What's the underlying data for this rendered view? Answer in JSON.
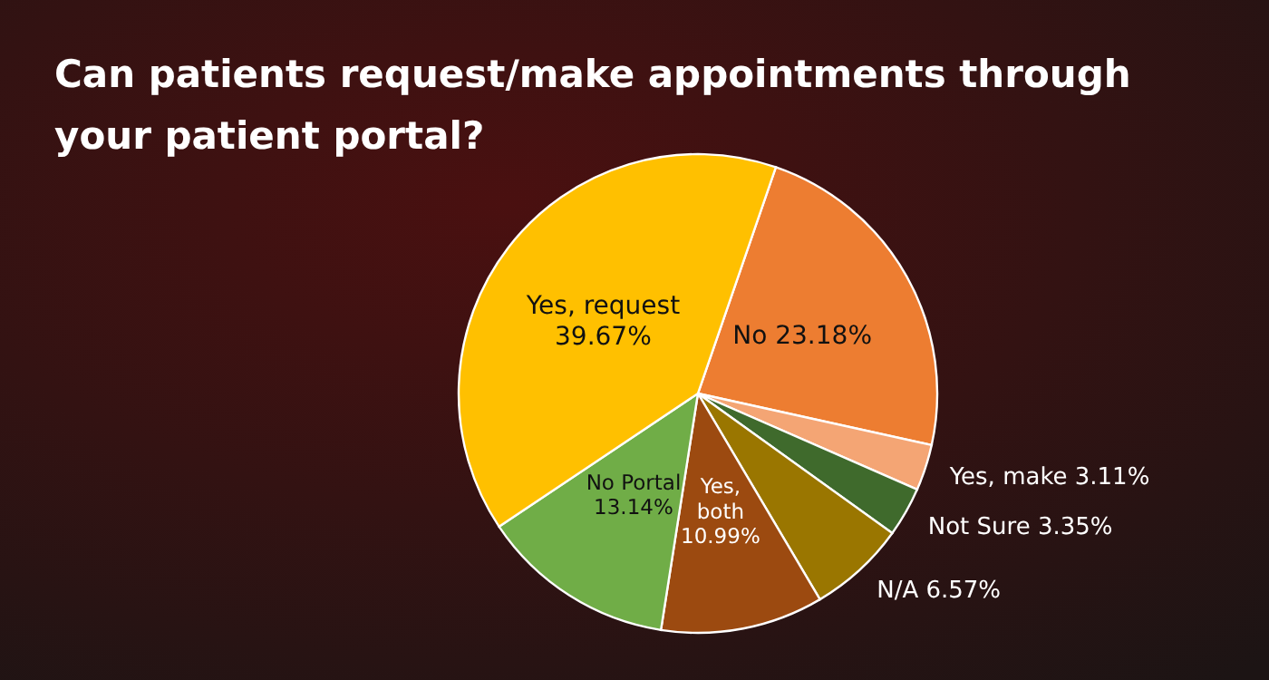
{
  "chart_data": {
    "type": "pie",
    "title": "Can patients request/make appointments through your patient portal?",
    "categories": [
      "No",
      "Yes, make",
      "Not Sure",
      "N/A",
      "Yes, both",
      "No Portal",
      "Yes, request"
    ],
    "values": [
      23.18,
      3.11,
      3.35,
      6.57,
      10.99,
      13.14,
      39.67
    ],
    "value_labels": [
      "23.18%",
      "3.11%",
      "3.35%",
      "6.57%",
      "10.99%",
      "13.14%",
      "39.67%"
    ],
    "colors": [
      "#ed7d31",
      "#f4a574",
      "#3f6a2c",
      "#9a7600",
      "#9c4a10",
      "#70ad47",
      "#ffc000"
    ]
  }
}
